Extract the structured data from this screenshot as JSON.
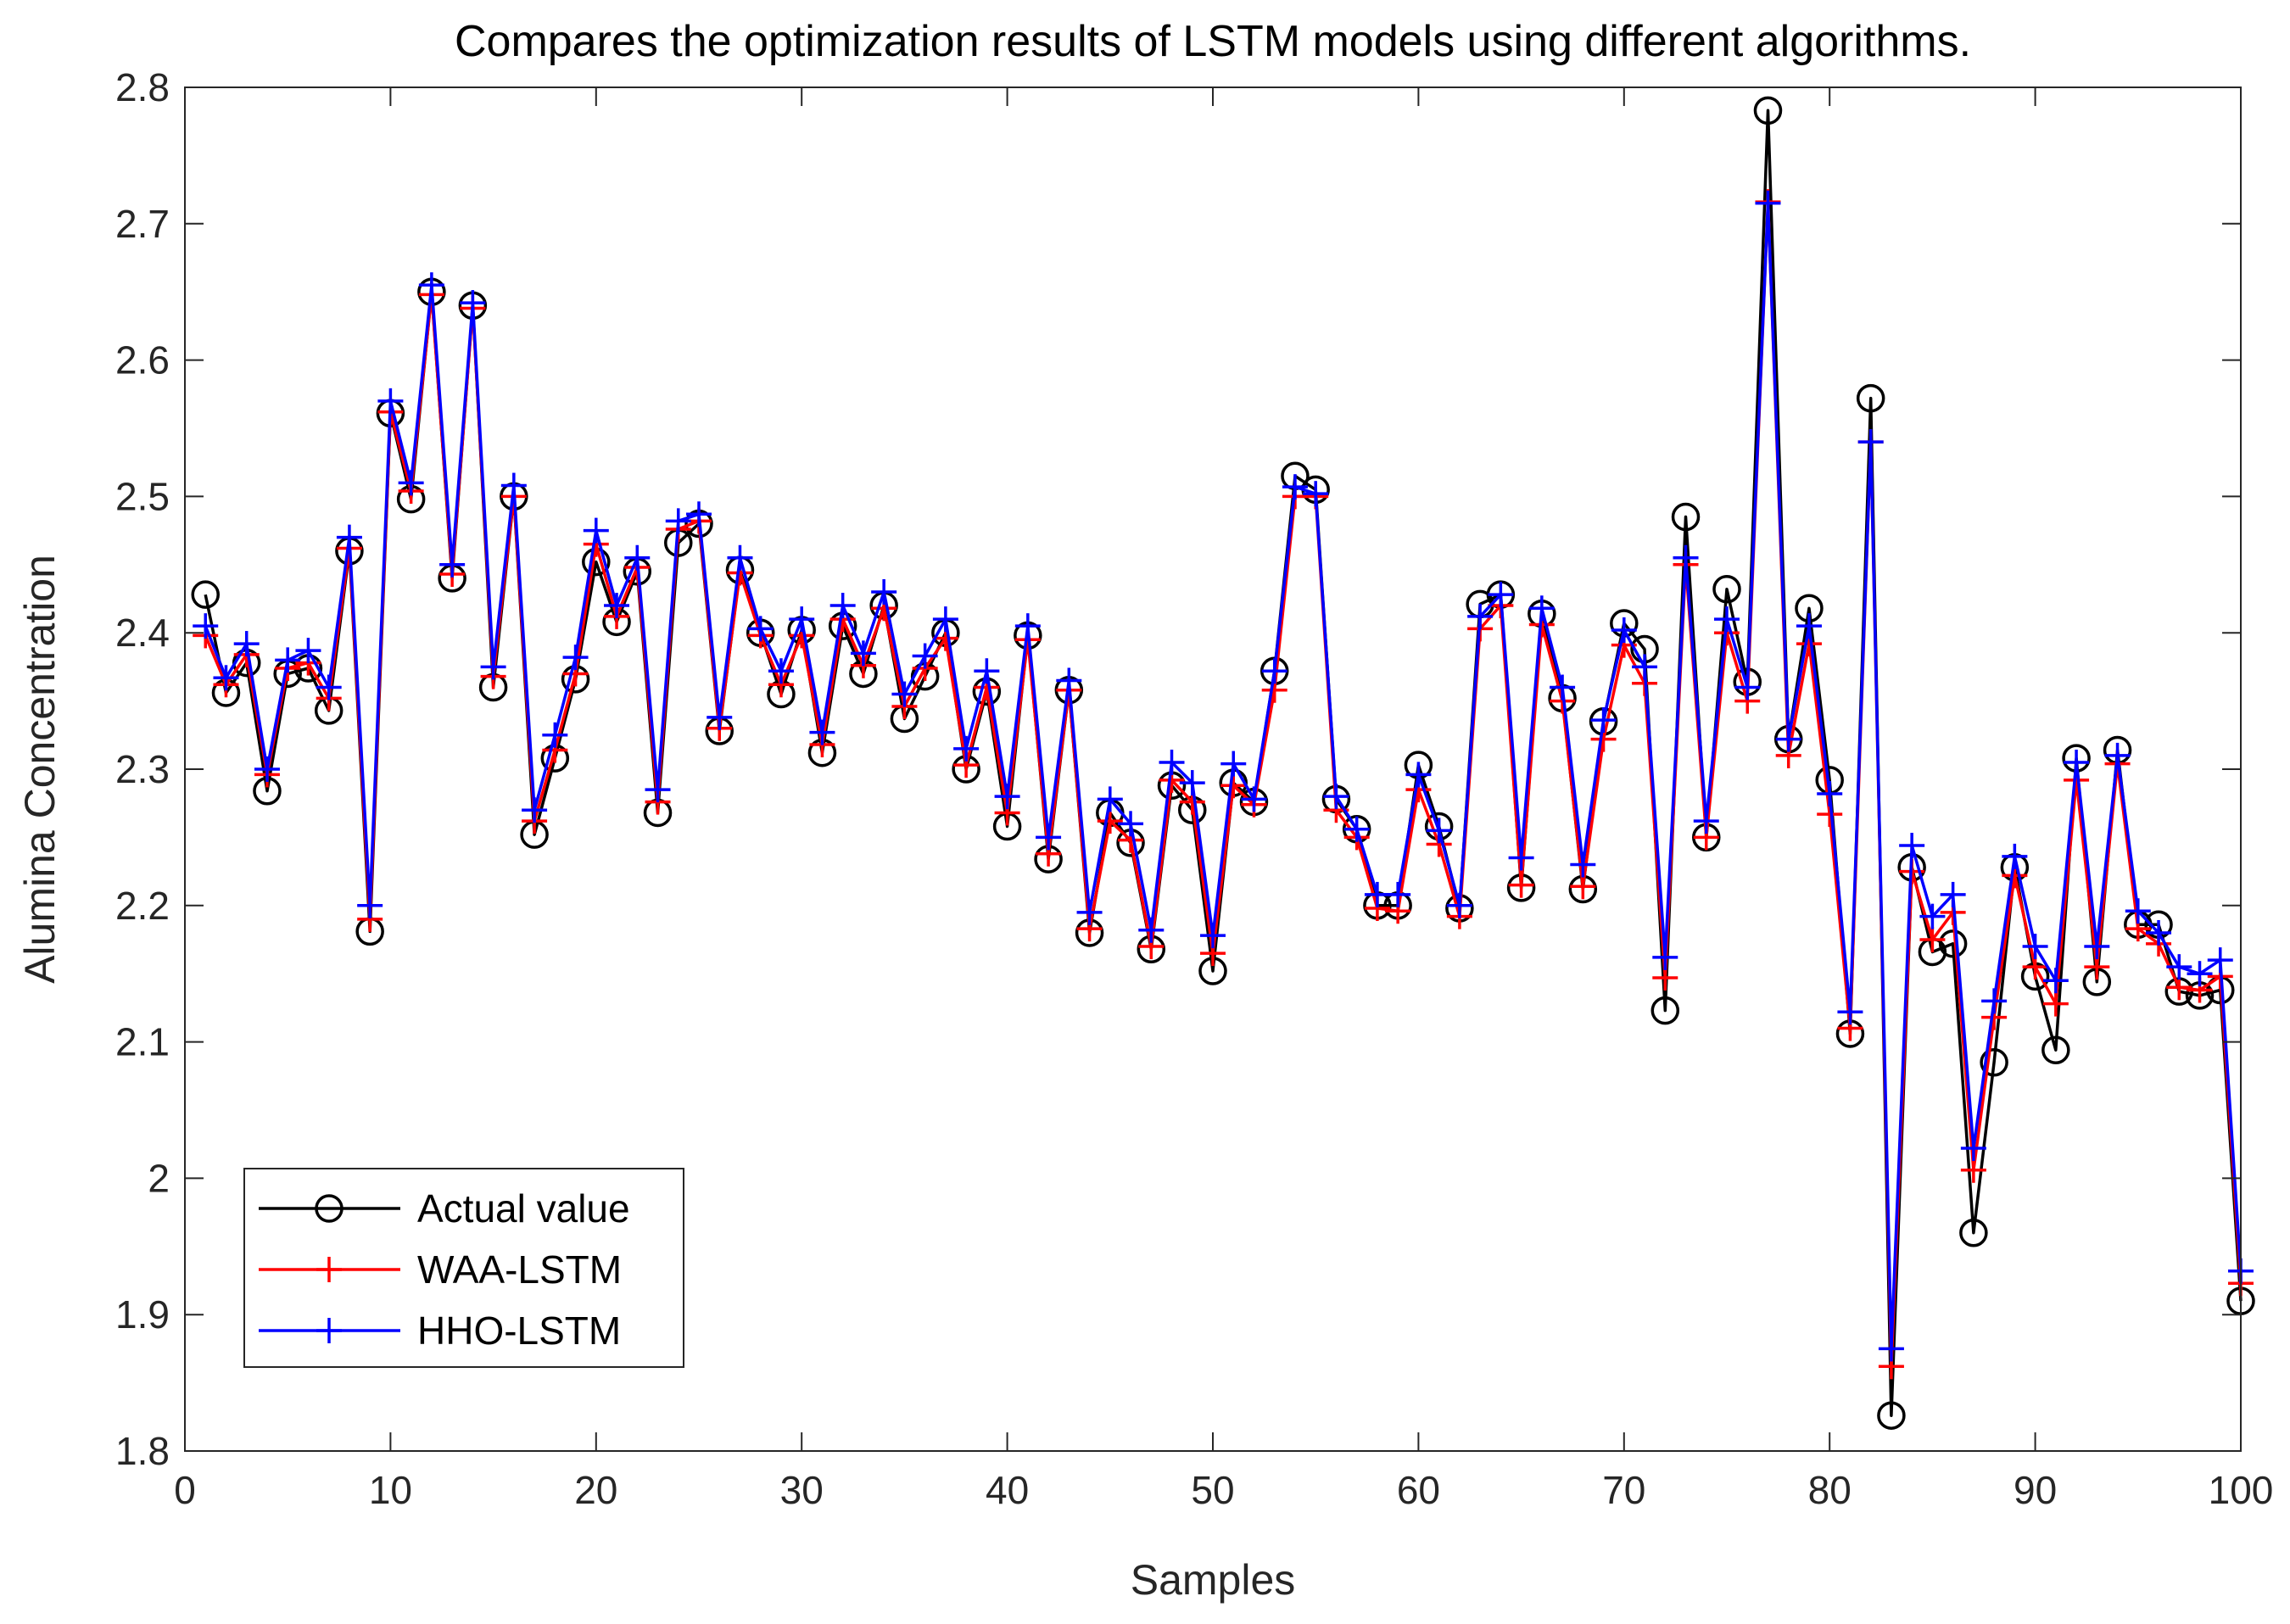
{
  "chart_data": {
    "type": "line",
    "title": "Compares the optimization results of LSTM models using different algorithms.",
    "xlabel": "Samples",
    "ylabel": "Alumina Concentration",
    "xlim": [
      0,
      100
    ],
    "ylim": [
      1.8,
      2.8
    ],
    "xticks": [
      0,
      10,
      20,
      30,
      40,
      50,
      60,
      70,
      80,
      90,
      100
    ],
    "yticks": [
      1.8,
      1.9,
      2.0,
      2.1,
      2.2,
      2.3,
      2.4,
      2.5,
      2.6,
      2.7,
      2.8
    ],
    "ytick_labels": [
      "1.8",
      "1.9",
      "2",
      "2.1",
      "2.2",
      "2.3",
      "2.4",
      "2.5",
      "2.6",
      "2.7",
      "2.8"
    ],
    "grid": false,
    "legend_position": "bottom-left",
    "x": [
      1,
      2,
      3,
      4,
      5,
      6,
      7,
      8,
      9,
      10,
      11,
      12,
      13,
      14,
      15,
      16,
      17,
      18,
      19,
      20,
      21,
      22,
      23,
      24,
      25,
      26,
      27,
      28,
      29,
      30,
      31,
      32,
      33,
      34,
      35,
      36,
      37,
      38,
      39,
      40,
      41,
      42,
      43,
      44,
      45,
      46,
      47,
      48,
      49,
      50,
      51,
      52,
      53,
      54,
      55,
      56,
      57,
      58,
      59,
      60,
      61,
      62,
      63,
      64,
      65,
      66,
      67,
      68,
      69,
      70,
      71,
      72,
      73,
      74,
      75,
      76,
      77,
      78,
      79,
      80,
      81,
      82,
      83,
      84,
      85,
      86,
      87,
      88,
      89,
      90,
      91,
      92,
      93,
      94,
      95,
      96,
      97,
      98,
      99,
      100
    ],
    "series": [
      {
        "name": "Actual value",
        "color": "#000000",
        "marker": "circle",
        "values": [
          2.428,
          2.356,
          2.378,
          2.284,
          2.37,
          2.374,
          2.343,
          2.46,
          2.181,
          2.561,
          2.498,
          2.65,
          2.44,
          2.64,
          2.36,
          2.5,
          2.252,
          2.308,
          2.366,
          2.452,
          2.408,
          2.445,
          2.268,
          2.466,
          2.48,
          2.328,
          2.446,
          2.4,
          2.355,
          2.402,
          2.312,
          2.405,
          2.37,
          2.42,
          2.337,
          2.368,
          2.4,
          2.3,
          2.357,
          2.258,
          2.398,
          2.234,
          2.358,
          2.18,
          2.268,
          2.246,
          2.168,
          2.288,
          2.27,
          2.152,
          2.29,
          2.276,
          2.372,
          2.515,
          2.505,
          2.278,
          2.256,
          2.2,
          2.2,
          2.303,
          2.258,
          2.198,
          2.421,
          2.428,
          2.213,
          2.414,
          2.352,
          2.212,
          2.335,
          2.407,
          2.388,
          2.123,
          2.485,
          2.25,
          2.432,
          2.364,
          2.783,
          2.322,
          2.418,
          2.292,
          2.106,
          2.572,
          1.826,
          2.228,
          2.166,
          2.172,
          1.96,
          2.085,
          2.228,
          2.148,
          2.094,
          2.308,
          2.144,
          2.314,
          2.186,
          2.186,
          2.137,
          2.134,
          2.138,
          1.91
        ]
      },
      {
        "name": "WAA-LSTM",
        "color": "#ff0000",
        "marker": "plus",
        "values": [
          2.398,
          2.362,
          2.384,
          2.296,
          2.374,
          2.378,
          2.352,
          2.462,
          2.19,
          2.562,
          2.504,
          2.648,
          2.443,
          2.638,
          2.368,
          2.5,
          2.262,
          2.314,
          2.37,
          2.465,
          2.412,
          2.448,
          2.276,
          2.476,
          2.482,
          2.33,
          2.444,
          2.398,
          2.362,
          2.398,
          2.318,
          2.41,
          2.376,
          2.418,
          2.346,
          2.374,
          2.396,
          2.303,
          2.36,
          2.268,
          2.395,
          2.238,
          2.358,
          2.183,
          2.262,
          2.248,
          2.17,
          2.292,
          2.276,
          2.165,
          2.288,
          2.274,
          2.358,
          2.5,
          2.5,
          2.27,
          2.25,
          2.198,
          2.196,
          2.285,
          2.245,
          2.192,
          2.403,
          2.42,
          2.215,
          2.406,
          2.35,
          2.214,
          2.322,
          2.391,
          2.363,
          2.147,
          2.45,
          2.25,
          2.4,
          2.35,
          2.716,
          2.31,
          2.392,
          2.267,
          2.11,
          2.54,
          1.862,
          2.225,
          2.175,
          2.195,
          2.006,
          2.118,
          2.222,
          2.155,
          2.128,
          2.292,
          2.155,
          2.304,
          2.183,
          2.172,
          2.14,
          2.138,
          2.148,
          1.923
        ]
      },
      {
        "name": "HHO-LSTM",
        "color": "#0000ff",
        "marker": "plus",
        "values": [
          2.405,
          2.367,
          2.392,
          2.3,
          2.38,
          2.387,
          2.36,
          2.47,
          2.2,
          2.57,
          2.51,
          2.655,
          2.45,
          2.642,
          2.375,
          2.508,
          2.27,
          2.325,
          2.382,
          2.475,
          2.42,
          2.455,
          2.285,
          2.482,
          2.487,
          2.338,
          2.455,
          2.403,
          2.372,
          2.41,
          2.327,
          2.42,
          2.385,
          2.43,
          2.355,
          2.383,
          2.41,
          2.315,
          2.372,
          2.28,
          2.405,
          2.25,
          2.365,
          2.195,
          2.278,
          2.26,
          2.182,
          2.305,
          2.29,
          2.178,
          2.304,
          2.278,
          2.372,
          2.507,
          2.502,
          2.28,
          2.256,
          2.208,
          2.208,
          2.296,
          2.255,
          2.2,
          2.412,
          2.428,
          2.235,
          2.418,
          2.36,
          2.23,
          2.336,
          2.402,
          2.375,
          2.162,
          2.455,
          2.262,
          2.41,
          2.36,
          2.715,
          2.322,
          2.405,
          2.282,
          2.122,
          2.54,
          1.875,
          2.244,
          2.192,
          2.208,
          2.022,
          2.13,
          2.236,
          2.17,
          2.145,
          2.305,
          2.17,
          2.31,
          2.196,
          2.18,
          2.155,
          2.15,
          2.16,
          1.932
        ]
      }
    ]
  }
}
